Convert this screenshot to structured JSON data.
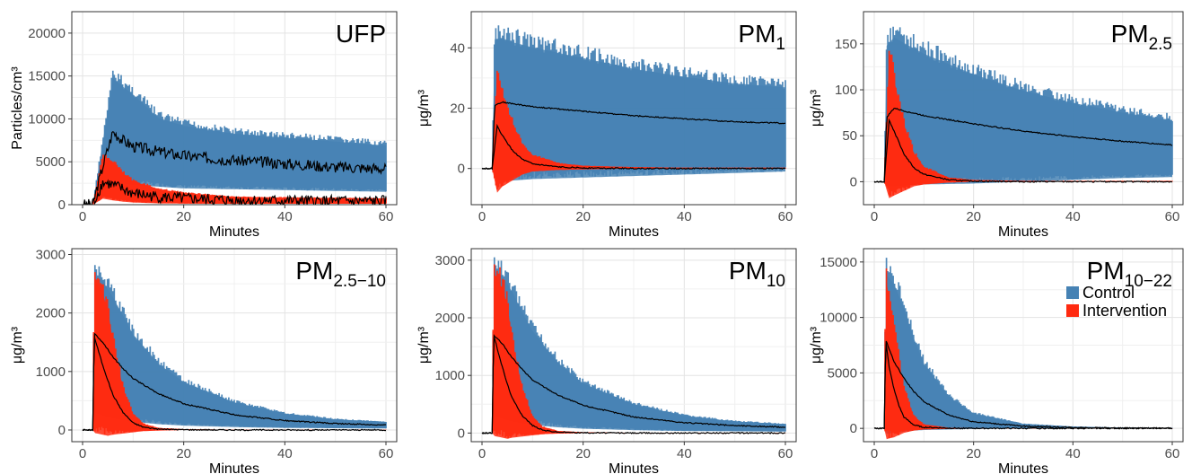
{
  "figure": {
    "legend": {
      "items": [
        {
          "label": "Control",
          "color": "#4682b4"
        },
        {
          "label": "Intervention",
          "color": "#ff2a10"
        }
      ],
      "placement": "right"
    },
    "mean_line_color": "#000000"
  },
  "chart_data": [
    {
      "type": "line",
      "id": "ufp",
      "title": "UFP",
      "title_sub": "",
      "xlabel": "Minutes",
      "ylabel": "Particles/cm³",
      "xlim": [
        0,
        60
      ],
      "ylim": [
        0,
        22500
      ],
      "xticks": [
        0,
        20,
        40,
        60
      ],
      "yticks": [
        0,
        5000,
        10000,
        15000,
        20000
      ],
      "grid": true,
      "series": [
        {
          "name": "Control",
          "mean_x": [
            0,
            2,
            4,
            6,
            8,
            10,
            15,
            20,
            30,
            40,
            50,
            60
          ],
          "mean_y": [
            0,
            0,
            4500,
            8500,
            7500,
            6800,
            6200,
            5700,
            5200,
            4800,
            4400,
            4200
          ],
          "upper_y": [
            0,
            0,
            8000,
            16000,
            15000,
            14000,
            11000,
            10000,
            9000,
            8500,
            8000,
            7500
          ],
          "lower_y": [
            0,
            0,
            1500,
            3000,
            2500,
            2300,
            2100,
            1900,
            1800,
            1700,
            1600,
            1500
          ]
        },
        {
          "name": "Intervention",
          "mean_x": [
            0,
            2,
            4,
            6,
            8,
            10,
            15,
            20,
            30,
            40,
            50,
            60
          ],
          "mean_y": [
            0,
            0,
            2600,
            2300,
            1800,
            1300,
            900,
            700,
            500,
            450,
            400,
            400
          ],
          "upper_y": [
            0,
            0,
            6000,
            5500,
            4000,
            3000,
            2000,
            1500,
            1000,
            900,
            850,
            800
          ],
          "lower_y": [
            0,
            0,
            700,
            500,
            350,
            250,
            150,
            120,
            100,
            100,
            100,
            100
          ]
        }
      ]
    },
    {
      "type": "line",
      "id": "pm1",
      "title": "PM",
      "title_sub": "1",
      "xlabel": "Minutes",
      "ylabel": "μg/m³",
      "xlim": [
        0,
        60
      ],
      "ylim": [
        -12,
        52
      ],
      "xticks": [
        0,
        20,
        40,
        60
      ],
      "yticks": [
        0,
        20,
        40
      ],
      "grid": true,
      "series": [
        {
          "name": "Control",
          "mean_x": [
            0,
            2,
            2.5,
            4,
            6,
            10,
            20,
            30,
            40,
            50,
            60
          ],
          "mean_y": [
            0,
            0,
            21,
            22,
            21.5,
            20.5,
            19,
            17.5,
            16.5,
            15.5,
            15
          ],
          "upper_y": [
            0,
            0,
            48,
            48.5,
            47,
            45,
            41,
            37,
            34,
            31.5,
            30
          ],
          "lower_y": [
            0,
            0,
            -3,
            -4,
            -4,
            -3.5,
            -3,
            -2.5,
            -2,
            -1.5,
            -1
          ]
        },
        {
          "name": "Intervention",
          "mean_x": [
            0,
            2,
            3,
            4,
            6,
            8,
            10,
            15,
            20,
            30,
            40,
            50,
            60
          ],
          "mean_y": [
            0,
            0,
            14,
            11,
            6,
            3,
            1.5,
            0.5,
            0.2,
            0,
            0,
            0,
            0
          ],
          "upper_y": [
            0,
            0,
            36,
            28,
            17,
            9,
            5,
            2,
            1,
            0.5,
            0.3,
            0.3,
            0.3
          ],
          "lower_y": [
            0,
            0,
            -8,
            -6,
            -4,
            -2,
            -1,
            -0.5,
            -0.3,
            0,
            0,
            0,
            0
          ]
        }
      ]
    },
    {
      "type": "line",
      "id": "pm25",
      "title": "PM",
      "title_sub": "2.5",
      "xlabel": "Minutes",
      "ylabel": "μg/m³",
      "xlim": [
        0,
        60
      ],
      "ylim": [
        -25,
        185
      ],
      "xticks": [
        0,
        20,
        40,
        60
      ],
      "yticks": [
        0,
        50,
        100,
        150
      ],
      "grid": true,
      "series": [
        {
          "name": "Control",
          "mean_x": [
            0,
            2,
            2.5,
            4,
            6,
            10,
            20,
            30,
            40,
            50,
            60
          ],
          "mean_y": [
            0,
            0,
            70,
            80,
            77,
            72,
            63,
            55,
            49,
            44,
            40
          ],
          "upper_y": [
            0,
            0,
            165,
            175,
            168,
            155,
            130,
            110,
            95,
            83,
            74
          ],
          "lower_y": [
            0,
            0,
            -5,
            -5,
            -4,
            -3,
            -2,
            0,
            2,
            4,
            5
          ]
        },
        {
          "name": "Intervention",
          "mean_x": [
            0,
            2,
            3,
            4,
            6,
            8,
            10,
            15,
            20,
            30,
            40,
            50,
            60
          ],
          "mean_y": [
            0,
            0,
            67,
            55,
            30,
            15,
            8,
            2,
            0.5,
            0,
            0,
            0,
            0
          ],
          "upper_y": [
            0,
            0,
            155,
            125,
            70,
            35,
            18,
            5,
            2,
            1,
            1,
            1,
            1
          ],
          "lower_y": [
            0,
            0,
            -18,
            -15,
            -10,
            -5,
            -3,
            -1,
            0,
            0,
            0,
            0,
            0
          ]
        }
      ]
    },
    {
      "type": "line",
      "id": "pm2510",
      "title": "PM",
      "title_sub": "2.5−10",
      "xlabel": "Minutes",
      "ylabel": "μg/m³",
      "xlim": [
        0,
        60
      ],
      "ylim": [
        -200,
        3100
      ],
      "xticks": [
        0,
        20,
        40,
        60
      ],
      "yticks": [
        0,
        1000,
        2000,
        3000
      ],
      "grid": true,
      "series": [
        {
          "name": "Control",
          "mean_x": [
            0,
            2,
            2.3,
            4,
            6,
            8,
            10,
            15,
            20,
            30,
            40,
            50,
            60
          ],
          "mean_y": [
            0,
            0,
            1650,
            1500,
            1250,
            1050,
            880,
            620,
            450,
            260,
            160,
            110,
            85
          ],
          "upper_y": [
            0,
            0,
            2900,
            2800,
            2500,
            2150,
            1800,
            1250,
            900,
            520,
            310,
            200,
            150
          ],
          "lower_y": [
            0,
            0,
            300,
            250,
            200,
            170,
            140,
            100,
            75,
            50,
            35,
            30,
            25
          ]
        },
        {
          "name": "Intervention",
          "mean_x": [
            0,
            2,
            2.3,
            4,
            5,
            6,
            8,
            10,
            12,
            15,
            20,
            30,
            60
          ],
          "mean_y": [
            0,
            0,
            1600,
            1100,
            850,
            600,
            300,
            120,
            50,
            15,
            5,
            0,
            0
          ],
          "upper_y": [
            0,
            0,
            2900,
            2600,
            2300,
            1700,
            800,
            300,
            120,
            40,
            15,
            5,
            5
          ],
          "lower_y": [
            0,
            0,
            -50,
            -80,
            -100,
            -80,
            -60,
            -40,
            -20,
            -10,
            0,
            0,
            0
          ]
        }
      ]
    },
    {
      "type": "line",
      "id": "pm10",
      "title": "PM",
      "title_sub": "10",
      "xlabel": "Minutes",
      "ylabel": "μg/m³",
      "xlim": [
        0,
        60
      ],
      "ylim": [
        -150,
        3200
      ],
      "xticks": [
        0,
        20,
        40,
        60
      ],
      "yticks": [
        0,
        1000,
        2000,
        3000
      ],
      "grid": true,
      "series": [
        {
          "name": "Control",
          "mean_x": [
            0,
            2,
            2.3,
            4,
            6,
            8,
            10,
            15,
            20,
            30,
            40,
            50,
            60
          ],
          "mean_y": [
            0,
            0,
            1700,
            1550,
            1300,
            1100,
            920,
            660,
            480,
            280,
            180,
            130,
            100
          ],
          "upper_y": [
            0,
            0,
            3100,
            3000,
            2700,
            2300,
            1950,
            1350,
            950,
            550,
            330,
            220,
            170
          ],
          "lower_y": [
            0,
            0,
            300,
            250,
            200,
            170,
            140,
            100,
            75,
            50,
            35,
            30,
            25
          ]
        },
        {
          "name": "Intervention",
          "mean_x": [
            0,
            2,
            2.3,
            4,
            5,
            6,
            8,
            10,
            12,
            15,
            20,
            30,
            60
          ],
          "mean_y": [
            0,
            0,
            1700,
            1150,
            850,
            600,
            300,
            130,
            50,
            15,
            5,
            0,
            0
          ],
          "upper_y": [
            0,
            0,
            3100,
            2800,
            2500,
            1800,
            850,
            320,
            120,
            40,
            15,
            5,
            5
          ],
          "lower_y": [
            0,
            0,
            -50,
            -80,
            -100,
            -80,
            -60,
            -40,
            -20,
            -10,
            0,
            0,
            0
          ]
        }
      ]
    },
    {
      "type": "line",
      "id": "pm1022",
      "title": "PM",
      "title_sub": "10−22",
      "xlabel": "Minutes",
      "ylabel": "μg/m³",
      "xlim": [
        0,
        60
      ],
      "ylim": [
        -1200,
        16200
      ],
      "xticks": [
        0,
        20,
        40,
        60
      ],
      "yticks": [
        0,
        5000,
        10000,
        15000
      ],
      "grid": true,
      "series": [
        {
          "name": "Control",
          "mean_x": [
            0,
            2,
            2.3,
            4,
            6,
            8,
            10,
            15,
            20,
            30,
            40,
            50,
            60
          ],
          "mean_y": [
            0,
            0,
            8000,
            6000,
            4500,
            3300,
            2400,
            1200,
            600,
            200,
            80,
            30,
            20
          ],
          "upper_y": [
            0,
            0,
            15500,
            14500,
            12000,
            9000,
            6500,
            3200,
            1500,
            450,
            180,
            80,
            50
          ],
          "lower_y": [
            0,
            0,
            -500,
            -400,
            -300,
            -200,
            -150,
            -100,
            -50,
            0,
            0,
            0,
            0
          ]
        },
        {
          "name": "Intervention",
          "mean_x": [
            0,
            2,
            2.3,
            3,
            4,
            5,
            6,
            8,
            10,
            15,
            20,
            60
          ],
          "mean_y": [
            0,
            0,
            8000,
            5500,
            3500,
            2000,
            1000,
            300,
            100,
            20,
            0,
            0
          ],
          "upper_y": [
            0,
            0,
            15500,
            13000,
            10000,
            7000,
            4000,
            1200,
            400,
            60,
            20,
            10
          ],
          "lower_y": [
            0,
            0,
            -1000,
            -900,
            -800,
            -600,
            -400,
            -200,
            -100,
            -50,
            0,
            0
          ]
        }
      ]
    }
  ]
}
